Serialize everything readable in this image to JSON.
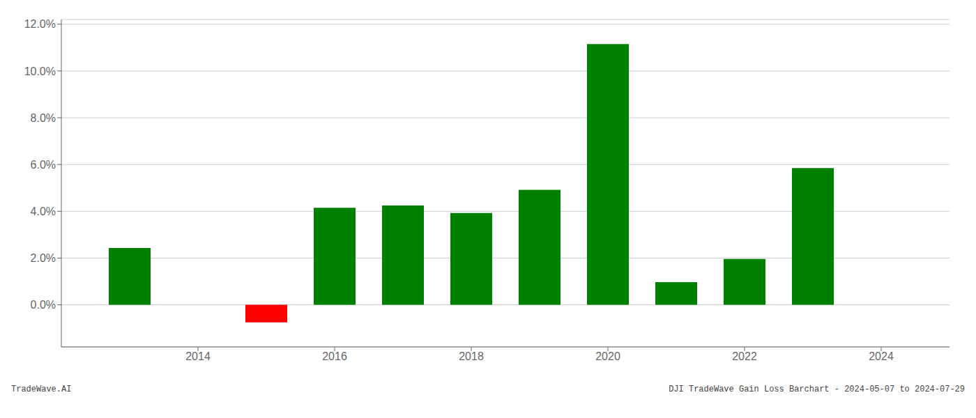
{
  "chart_data": {
    "type": "bar",
    "x": [
      2013,
      2015,
      2016,
      2017,
      2018,
      2019,
      2020,
      2021,
      2022,
      2023
    ],
    "values": [
      0.0243,
      -0.0075,
      0.0415,
      0.0425,
      0.0393,
      0.0492,
      0.1115,
      0.0097,
      0.0196,
      0.0585
    ],
    "colors": [
      "#008000",
      "#ff0000",
      "#008000",
      "#008000",
      "#008000",
      "#008000",
      "#008000",
      "#008000",
      "#008000",
      "#008000"
    ],
    "xlim": [
      2012.0,
      2025.0
    ],
    "xticks": [
      2014,
      2016,
      2018,
      2020,
      2022,
      2024
    ],
    "ylim": [
      -0.018,
      0.122
    ],
    "yticks": [
      {
        "value": 0,
        "label": "0.0%"
      },
      {
        "value": 0.02,
        "label": "2.0%"
      },
      {
        "value": 0.04,
        "label": "4.0%"
      },
      {
        "value": 0.06,
        "label": "6.0%"
      },
      {
        "value": 0.08,
        "label": "8.0%"
      },
      {
        "value": 0.1,
        "label": "10.0%"
      },
      {
        "value": 0.12,
        "label": "12.0%"
      }
    ],
    "grid": true,
    "annotations": [
      "TradeWave.AI",
      "DJI TradeWave Gain Loss Barchart - 2024-05-07 to 2024-07-29"
    ]
  }
}
